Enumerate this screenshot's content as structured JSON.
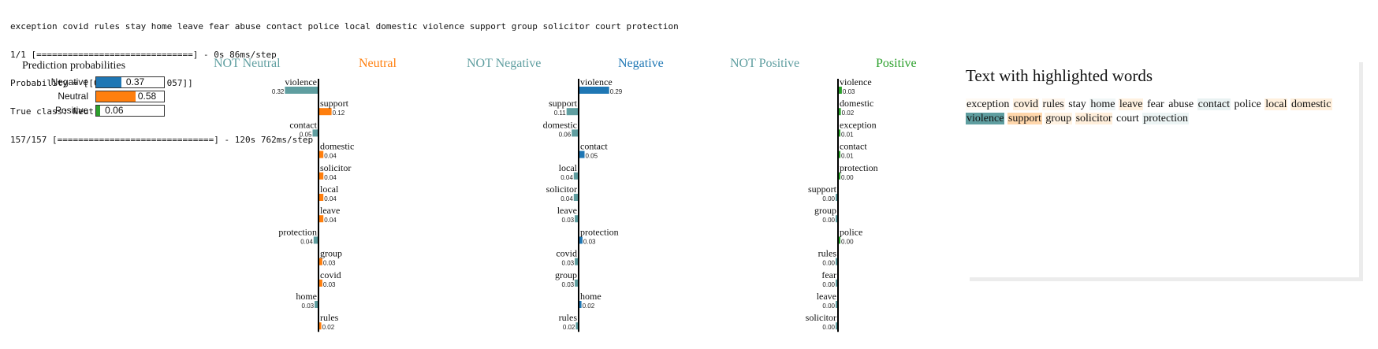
{
  "console": {
    "lines": [
      "exception covid rules stay home leave fear abuse contact police local domestic violence support group solicitor court protection",
      "1/1 [==============================] - 0s 86ms/step",
      "Probability = [[0.366 0.577 0.057]]",
      "True class: Neutral",
      "157/157 [==============================] - 120s 762ms/step"
    ]
  },
  "prediction": {
    "title": "Prediction probabilities",
    "classes": [
      {
        "name": "Negative",
        "value": 0.37,
        "label": "0.37",
        "color": "#1f77b4"
      },
      {
        "name": "Neutral",
        "value": 0.58,
        "label": "0.58",
        "color": "#ff7f0e"
      },
      {
        "name": "Positive",
        "value": 0.06,
        "label": "0.06",
        "color": "#2ca02c"
      }
    ]
  },
  "chart_data": [
    {
      "type": "bar",
      "title_not": "NOT Neutral",
      "title_yes": "Neutral",
      "not_color": "#5f9ea0",
      "yes_color": "#ff7f0e",
      "features": [
        {
          "word": "violence",
          "weight": -0.32,
          "label": "0.32"
        },
        {
          "word": "support",
          "weight": 0.12,
          "label": "0.12"
        },
        {
          "word": "contact",
          "weight": -0.05,
          "label": "0.05"
        },
        {
          "word": "domestic",
          "weight": 0.04,
          "label": "0.04"
        },
        {
          "word": "solicitor",
          "weight": 0.04,
          "label": "0.04"
        },
        {
          "word": "local",
          "weight": 0.04,
          "label": "0.04"
        },
        {
          "word": "leave",
          "weight": 0.04,
          "label": "0.04"
        },
        {
          "word": "protection",
          "weight": -0.04,
          "label": "0.04"
        },
        {
          "word": "group",
          "weight": 0.03,
          "label": "0.03"
        },
        {
          "word": "covid",
          "weight": 0.03,
          "label": "0.03"
        },
        {
          "word": "home",
          "weight": -0.03,
          "label": "0.03"
        },
        {
          "word": "rules",
          "weight": 0.02,
          "label": "0.02"
        }
      ]
    },
    {
      "type": "bar",
      "title_not": "NOT Negative",
      "title_yes": "Negative",
      "not_color": "#5f9ea0",
      "yes_color": "#1f77b4",
      "features": [
        {
          "word": "violence",
          "weight": 0.29,
          "label": "0.29"
        },
        {
          "word": "support",
          "weight": -0.11,
          "label": "0.11"
        },
        {
          "word": "domestic",
          "weight": -0.06,
          "label": "0.06"
        },
        {
          "word": "contact",
          "weight": 0.05,
          "label": "0.05"
        },
        {
          "word": "local",
          "weight": -0.04,
          "label": "0.04"
        },
        {
          "word": "solicitor",
          "weight": -0.04,
          "label": "0.04"
        },
        {
          "word": "leave",
          "weight": -0.03,
          "label": "0.03"
        },
        {
          "word": "protection",
          "weight": 0.03,
          "label": "0.03"
        },
        {
          "word": "covid",
          "weight": -0.03,
          "label": "0.03"
        },
        {
          "word": "group",
          "weight": -0.03,
          "label": "0.03"
        },
        {
          "word": "home",
          "weight": 0.02,
          "label": "0.02"
        },
        {
          "word": "rules",
          "weight": -0.02,
          "label": "0.02"
        }
      ]
    },
    {
      "type": "bar",
      "title_not": "NOT Positive",
      "title_yes": "Positive",
      "not_color": "#5f9ea0",
      "yes_color": "#2ca02c",
      "features": [
        {
          "word": "violence",
          "weight": 0.03,
          "label": "0.03"
        },
        {
          "word": "domestic",
          "weight": 0.02,
          "label": "0.02"
        },
        {
          "word": "exception",
          "weight": 0.01,
          "label": "0.01"
        },
        {
          "word": "contact",
          "weight": 0.01,
          "label": "0.01"
        },
        {
          "word": "protection",
          "weight": 0.003,
          "label": "0.00"
        },
        {
          "word": "support",
          "weight": -0.003,
          "label": "0.00"
        },
        {
          "word": "group",
          "weight": -0.003,
          "label": "0.00"
        },
        {
          "word": "police",
          "weight": 0.003,
          "label": "0.00"
        },
        {
          "word": "rules",
          "weight": -0.002,
          "label": "0.00"
        },
        {
          "word": "fear",
          "weight": -0.002,
          "label": "0.00"
        },
        {
          "word": "leave",
          "weight": -0.002,
          "label": "0.00"
        },
        {
          "word": "solicitor",
          "weight": -0.002,
          "label": "0.00"
        }
      ]
    }
  ],
  "highlight": {
    "title": "Text with highlighted words",
    "words": [
      {
        "w": "exception",
        "c": "#fffaf3"
      },
      {
        "w": "covid",
        "c": "#fff1e0"
      },
      {
        "w": "rules",
        "c": "#fff6ec"
      },
      {
        "w": "stay",
        "c": ""
      },
      {
        "w": "home",
        "c": "#f1f7f7"
      },
      {
        "w": "leave",
        "c": "#fff1e0"
      },
      {
        "w": "fear",
        "c": ""
      },
      {
        "w": "abuse",
        "c": ""
      },
      {
        "w": "contact",
        "c": "#e9f2f2"
      },
      {
        "w": "police",
        "c": ""
      },
      {
        "w": "local",
        "c": "#fff0dd"
      },
      {
        "w": "domestic",
        "c": "#ffefdc"
      },
      {
        "w": "violence",
        "c": "#5f9ea0"
      },
      {
        "w": "support",
        "c": "#ffd7ac"
      },
      {
        "w": "group",
        "c": "#fff2e2"
      },
      {
        "w": "solicitor",
        "c": "#ffefdc"
      },
      {
        "w": "court",
        "c": ""
      },
      {
        "w": "protection",
        "c": "#edf5f5"
      }
    ]
  }
}
